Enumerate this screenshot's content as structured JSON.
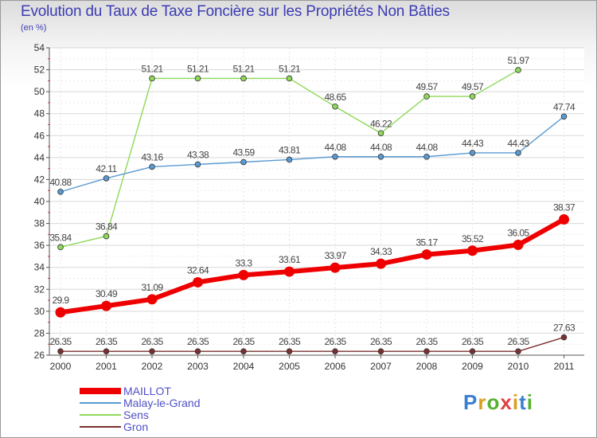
{
  "chart_data": {
    "type": "line",
    "title": "Evolution du Taux de Taxe Foncière sur les Propriétés Non Bâties",
    "subtitle": "(en %)",
    "xlabel": "",
    "ylabel": "",
    "x": [
      "2000",
      "2001",
      "2002",
      "2003",
      "2004",
      "2005",
      "2006",
      "2007",
      "2008",
      "2009",
      "2010",
      "2011"
    ],
    "ylim": [
      26,
      54
    ],
    "yticks": [
      "26",
      "28",
      "30",
      "32",
      "34",
      "36",
      "38",
      "40",
      "42",
      "44",
      "46",
      "48",
      "50",
      "52",
      "54"
    ],
    "grid": true,
    "legend": "bottom-left",
    "series": [
      {
        "name": "MAILLOT",
        "color": "#ee0000",
        "values": [
          29.9,
          30.49,
          31.09,
          32.64,
          33.3,
          33.61,
          33.97,
          34.33,
          35.17,
          35.52,
          36.05,
          38.37
        ],
        "labels": [
          "29.9",
          "30.49",
          "31.09",
          "32.64",
          "33.3",
          "33.61",
          "33.97",
          "34.33",
          "35.17",
          "35.52",
          "36.05",
          "38.37"
        ]
      },
      {
        "name": "Malay-le-Grand",
        "color": "#5a9ad2",
        "values": [
          40.88,
          42.11,
          43.16,
          43.38,
          43.59,
          43.81,
          44.08,
          44.08,
          44.08,
          44.43,
          44.43,
          47.74
        ],
        "labels": [
          "40.88",
          "42.11",
          "43.16",
          "43.38",
          "43.59",
          "43.81",
          "44.08",
          "44.08",
          "44.08",
          "44.43",
          "44.43",
          "47.74"
        ]
      },
      {
        "name": "Sens",
        "color": "#8ed85a",
        "values": [
          35.84,
          36.84,
          51.21,
          51.21,
          51.21,
          51.21,
          48.65,
          46.22,
          49.57,
          49.57,
          51.97,
          null
        ],
        "labels": [
          "35.84",
          "36.84",
          "51.21",
          "51.21",
          "51.21",
          "51.21",
          "48.65",
          "46.22",
          "49.57",
          "49.57",
          "51.97",
          null
        ]
      },
      {
        "name": "Gron",
        "color": "#7a3030",
        "values": [
          26.35,
          26.35,
          26.35,
          26.35,
          26.35,
          26.35,
          26.35,
          26.35,
          26.35,
          26.35,
          26.35,
          27.63
        ],
        "labels": [
          "26.35",
          "26.35",
          "26.35",
          "26.35",
          "26.35",
          "26.35",
          "26.35",
          "26.35",
          "26.35",
          "26.35",
          "26.35",
          "27.63"
        ]
      }
    ]
  },
  "logo": {
    "letters": [
      "P",
      "r",
      "o",
      "x",
      "i",
      "t",
      "i"
    ],
    "colors": [
      "#3a7fd0",
      "#d8a020",
      "#58b030",
      "#e04040",
      "#d8a020",
      "#3a7fd0",
      "#58b030"
    ]
  }
}
